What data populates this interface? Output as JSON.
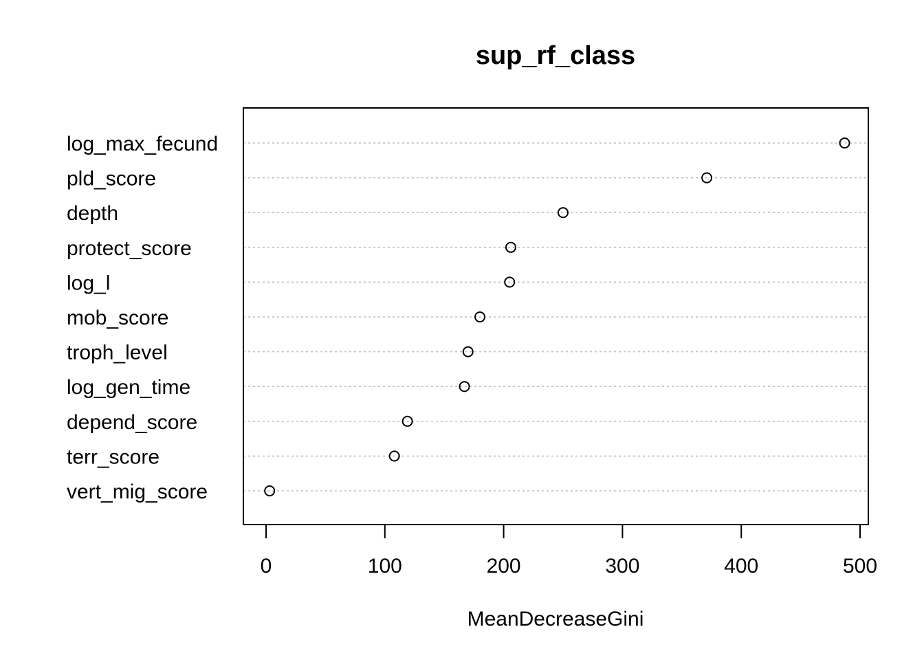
{
  "chart_data": {
    "type": "scatter",
    "title": "sup_rf_class",
    "xlabel": "MeanDecreaseGini",
    "ylabel": "",
    "xlim": [
      -20,
      508
    ],
    "xticks": [
      0,
      100,
      200,
      300,
      400,
      500
    ],
    "grid": "horizontal dotted guides",
    "categories": [
      "log_max_fecund",
      "pld_score",
      "depth",
      "protect_score",
      "log_l",
      "mob_score",
      "troph_level",
      "log_gen_time",
      "depend_score",
      "terr_score",
      "vert_mig_score"
    ],
    "values": [
      487,
      371,
      250,
      206,
      205,
      180,
      170,
      167,
      119,
      108,
      3
    ]
  }
}
